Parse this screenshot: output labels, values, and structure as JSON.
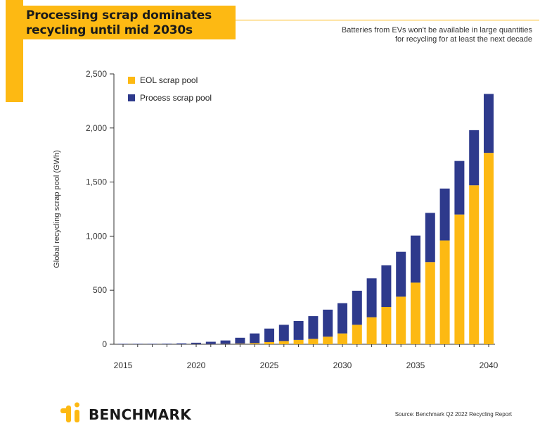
{
  "header": {
    "title_line1": "Processing scrap dominates",
    "title_line2": "recycling until mid 2030s",
    "subtitle_line1": "Batteries from EVs won't be available in large quantities",
    "subtitle_line2": "for recycling for at least the next decade"
  },
  "footer": {
    "brand": "BENCHMARK",
    "source": "Source: Benchmark Q2 2022 Recycling Report"
  },
  "colors": {
    "accent": "#FDB913",
    "eol": "#FDB913",
    "process": "#2E3A8C",
    "text": "#1a1a1a"
  },
  "chart_data": {
    "type": "bar",
    "stacked": true,
    "ylabel": "Global recycling scrap pool (GWh)",
    "xlabel": "",
    "ylim": [
      0,
      2500
    ],
    "yticks": [
      "0",
      "500",
      "1,000",
      "1,500",
      "2,000",
      "2,500"
    ],
    "ytick_values": [
      0,
      500,
      1000,
      1500,
      2000,
      2500
    ],
    "xticks": [
      "2015",
      "2020",
      "2025",
      "2030",
      "2035",
      "2040"
    ],
    "xtick_values": [
      2015,
      2020,
      2025,
      2030,
      2035,
      2040
    ],
    "legend_position": "top-left",
    "grid": false,
    "categories": [
      2015,
      2016,
      2017,
      2018,
      2019,
      2020,
      2021,
      2022,
      2023,
      2024,
      2025,
      2026,
      2027,
      2028,
      2029,
      2030,
      2031,
      2032,
      2033,
      2034,
      2035,
      2036,
      2037,
      2038,
      2039,
      2040
    ],
    "series": [
      {
        "name": "EOL scrap pool",
        "color": "#FDB913",
        "values": [
          0,
          0,
          0,
          0,
          0,
          1,
          1,
          2,
          5,
          10,
          20,
          30,
          40,
          50,
          70,
          100,
          180,
          250,
          345,
          440,
          570,
          760,
          960,
          1200,
          1470,
          1770
        ]
      },
      {
        "name": "Process scrap pool",
        "color": "#2E3A8C",
        "values": [
          3,
          4,
          4,
          5,
          8,
          13,
          22,
          33,
          55,
          90,
          125,
          150,
          175,
          210,
          250,
          280,
          315,
          360,
          385,
          415,
          435,
          455,
          480,
          495,
          510,
          545
        ]
      }
    ]
  }
}
